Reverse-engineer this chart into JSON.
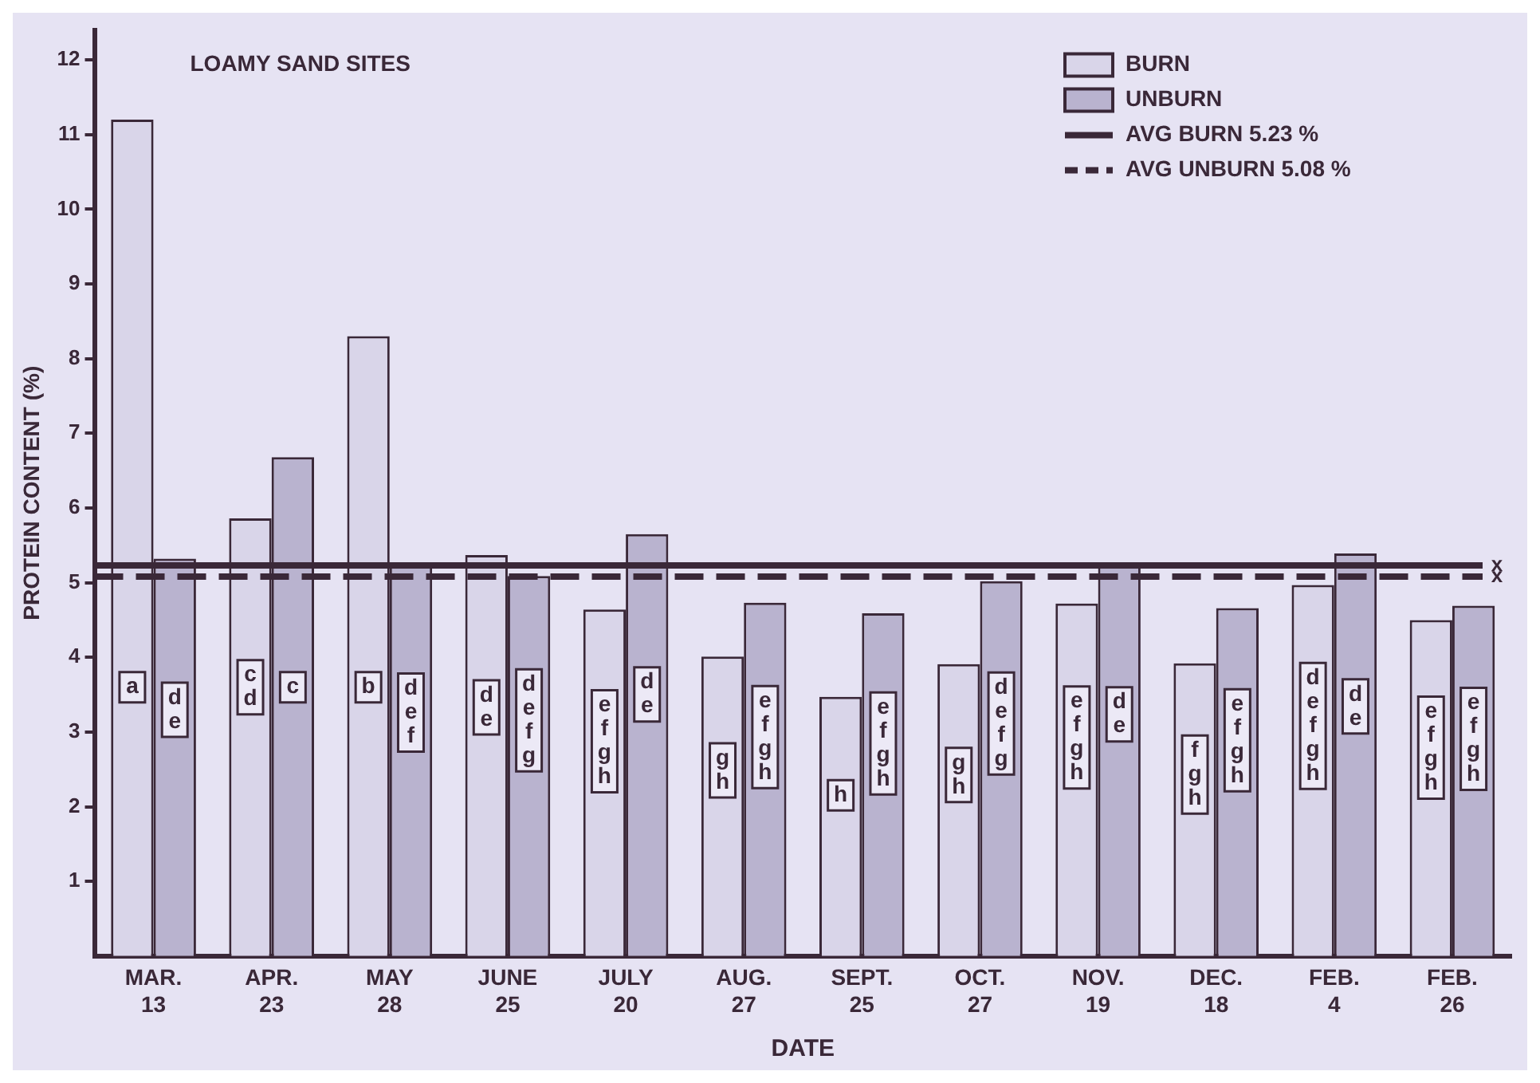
{
  "chart_data": {
    "type": "bar",
    "title": "LOAMY SAND SITES",
    "xlabel": "DATE",
    "ylabel": "PROTEIN CONTENT (%)",
    "categories": [
      "MAR.\n13",
      "APR.\n23",
      "MAY\n28",
      "JUNE\n25",
      "JULY\n20",
      "AUG.\n27",
      "SEPT.\n25",
      "OCT.\n27",
      "NOV.\n19",
      "DEC.\n18",
      "FEB.\n4",
      "FEB.\n26"
    ],
    "series": [
      {
        "name": "BURN",
        "color": "#d9d5e9",
        "values": [
          11.2,
          5.86,
          8.3,
          5.37,
          4.64,
          4.01,
          3.47,
          3.91,
          4.72,
          3.92,
          4.97,
          4.5
        ],
        "value_labels": [
          "a",
          "cd",
          "b",
          "de",
          "efgh",
          "gh",
          "h",
          "gh",
          "efgh",
          "fgh",
          "defgh",
          "efgh"
        ]
      },
      {
        "name": "UNBURN",
        "color": "#b9b3cf",
        "values": [
          5.32,
          6.68,
          5.26,
          5.09,
          5.65,
          4.73,
          4.59,
          5.02,
          5.22,
          4.66,
          5.39,
          4.69
        ],
        "value_labels": [
          "de",
          "c",
          "def",
          "defg",
          "de",
          "efgh",
          "efgh",
          "defg",
          "de",
          "efgh",
          "de",
          "efgh"
        ]
      }
    ],
    "ref_lines": [
      {
        "axis": "y",
        "value": 5.23,
        "label": "AVG BURN 5.23 %",
        "color": "#3a2838",
        "line_style": "solid"
      },
      {
        "axis": "y",
        "value": 5.08,
        "label": "AVG UNBURN 5.08 %",
        "color": "#3a2838",
        "line_style": "dashed"
      }
    ],
    "annotations": [
      "x",
      "x"
    ],
    "ylim": [
      0,
      12.4
    ],
    "yticks": [
      1,
      2,
      3,
      4,
      5,
      6,
      7,
      8,
      9,
      10,
      11,
      12
    ],
    "grid": false,
    "legend": "top right"
  }
}
